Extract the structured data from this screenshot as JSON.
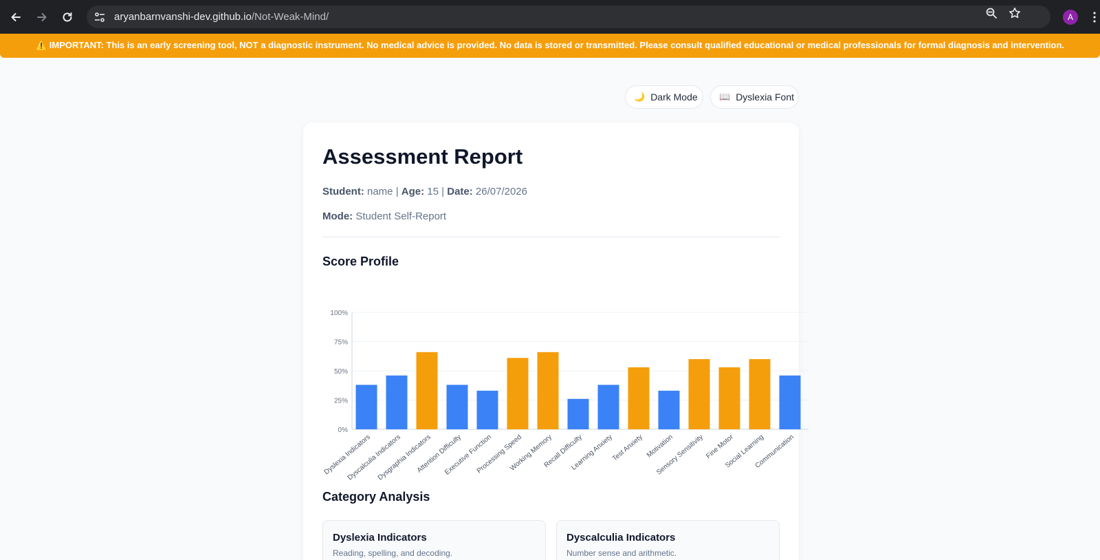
{
  "browser": {
    "url_host": "aryanbarnvanshi-dev.github.io",
    "url_path": "/Not-Weak-Mind/",
    "avatar_letter": "A"
  },
  "banner": {
    "text": "⚠️ IMPORTANT: This is an early screening tool, NOT a diagnostic instrument. No medical advice is provided. No data is stored or transmitted. Please consult qualified educational or medical professionals for formal diagnosis and intervention."
  },
  "toggles": {
    "dark_mode_icon": "🌙",
    "dark_mode_label": "Dark Mode",
    "dyslexia_font_icon": "📖",
    "dyslexia_font_label": "Dyslexia Font"
  },
  "report": {
    "title": "Assessment Report",
    "student_label": "Student:",
    "student_value": "name",
    "age_label": "Age:",
    "age_value": "15",
    "date_label": "Date:",
    "date_value": "26/07/2026",
    "mode_label": "Mode:",
    "mode_value": "Student Self-Report",
    "score_profile_heading": "Score Profile",
    "category_heading": "Category Analysis"
  },
  "chart_data": {
    "type": "bar",
    "categories": [
      "Dyslexia Indicators",
      "Dyscalculia Indicators",
      "Dysgraphia Indicators",
      "Attention Difficulty",
      "Executive Function",
      "Processing Speed",
      "Working Memory",
      "Recall Difficulty",
      "Learning Anxiety",
      "Test Anxiety",
      "Motivation",
      "Sensory Sensitivity",
      "Fine Motor",
      "Social Learning",
      "Communication"
    ],
    "values": [
      38,
      46,
      66,
      38,
      33,
      61,
      66,
      26,
      38,
      53,
      33,
      60,
      53,
      60,
      46
    ],
    "bar_colors": [
      "#3b82f6",
      "#3b82f6",
      "#f59e0b",
      "#3b82f6",
      "#3b82f6",
      "#f59e0b",
      "#f59e0b",
      "#3b82f6",
      "#3b82f6",
      "#f59e0b",
      "#3b82f6",
      "#f59e0b",
      "#f59e0b",
      "#f59e0b",
      "#3b82f6"
    ],
    "yticks": [
      "0%",
      "25%",
      "50%",
      "75%",
      "100%"
    ],
    "ylim": [
      0,
      100
    ],
    "grid": true
  },
  "categories": [
    {
      "title": "Dyslexia Indicators",
      "desc": "Reading, spelling, and decoding."
    },
    {
      "title": "Dyscalculia Indicators",
      "desc": "Number sense and arithmetic."
    }
  ],
  "colors": {
    "banner": "#f59e0b",
    "bar_low": "#3b82f6",
    "bar_high": "#f59e0b"
  }
}
